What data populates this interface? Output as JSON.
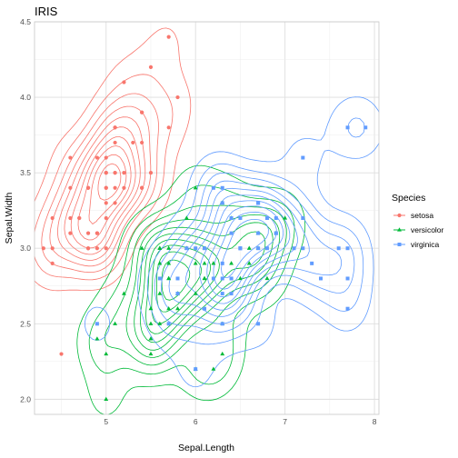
{
  "chart_data": {
    "type": "scatter",
    "title": "IRIS",
    "xlabel": "Sepal.Length",
    "ylabel": "Sepal.Width",
    "xlim": [
      4.2,
      8.05
    ],
    "ylim": [
      1.9,
      4.5
    ],
    "x_ticks": [
      5,
      6,
      7,
      8
    ],
    "y_ticks": [
      2.0,
      2.5,
      3.0,
      3.5,
      4.0,
      4.5
    ],
    "x_tick_labels": [
      "5",
      "6",
      "7",
      "8"
    ],
    "y_tick_labels": [
      "2.0",
      "2.5",
      "3.0",
      "3.5",
      "4.0",
      "4.5"
    ],
    "grid": true,
    "overlay": "2d density contours per series",
    "legend": {
      "title": "Species",
      "position": "right"
    },
    "series": [
      {
        "name": "setosa",
        "color": "#F8766D",
        "marker": "circle",
        "points": [
          [
            5.1,
            3.5
          ],
          [
            4.9,
            3.0
          ],
          [
            4.7,
            3.2
          ],
          [
            4.6,
            3.1
          ],
          [
            5.0,
            3.6
          ],
          [
            5.4,
            3.9
          ],
          [
            4.6,
            3.4
          ],
          [
            5.0,
            3.4
          ],
          [
            4.4,
            2.9
          ],
          [
            4.9,
            3.1
          ],
          [
            5.4,
            3.7
          ],
          [
            4.8,
            3.4
          ],
          [
            4.8,
            3.0
          ],
          [
            4.3,
            3.0
          ],
          [
            5.8,
            4.0
          ],
          [
            5.7,
            4.4
          ],
          [
            5.4,
            3.9
          ],
          [
            5.1,
            3.5
          ],
          [
            5.7,
            3.8
          ],
          [
            5.1,
            3.8
          ],
          [
            5.4,
            3.4
          ],
          [
            5.1,
            3.7
          ],
          [
            4.6,
            3.6
          ],
          [
            5.1,
            3.3
          ],
          [
            4.8,
            3.4
          ],
          [
            5.0,
            3.0
          ],
          [
            5.0,
            3.4
          ],
          [
            5.2,
            3.5
          ],
          [
            5.2,
            3.4
          ],
          [
            4.7,
            3.2
          ],
          [
            4.8,
            3.1
          ],
          [
            5.4,
            3.4
          ],
          [
            5.2,
            4.1
          ],
          [
            5.5,
            4.2
          ],
          [
            4.9,
            3.1
          ],
          [
            5.0,
            3.2
          ],
          [
            5.5,
            3.5
          ],
          [
            4.9,
            3.6
          ],
          [
            4.4,
            3.0
          ],
          [
            5.1,
            3.4
          ],
          [
            5.0,
            3.5
          ],
          [
            4.5,
            2.3
          ],
          [
            4.4,
            3.2
          ],
          [
            5.0,
            3.5
          ],
          [
            5.1,
            3.8
          ],
          [
            4.8,
            3.0
          ],
          [
            5.1,
            3.8
          ],
          [
            4.6,
            3.2
          ],
          [
            5.3,
            3.7
          ],
          [
            5.0,
            3.3
          ]
        ]
      },
      {
        "name": "versicolor",
        "color": "#00BA38",
        "marker": "triangle",
        "points": [
          [
            7.0,
            3.2
          ],
          [
            6.4,
            3.2
          ],
          [
            6.9,
            3.1
          ],
          [
            5.5,
            2.3
          ],
          [
            6.5,
            2.8
          ],
          [
            5.7,
            2.8
          ],
          [
            6.3,
            3.3
          ],
          [
            4.9,
            2.4
          ],
          [
            6.6,
            2.9
          ],
          [
            5.2,
            2.7
          ],
          [
            5.0,
            2.0
          ],
          [
            5.9,
            3.0
          ],
          [
            6.0,
            2.2
          ],
          [
            6.1,
            2.9
          ],
          [
            5.6,
            2.9
          ],
          [
            6.7,
            3.1
          ],
          [
            5.6,
            3.0
          ],
          [
            5.8,
            2.7
          ],
          [
            6.2,
            2.2
          ],
          [
            5.6,
            2.5
          ],
          [
            5.9,
            3.2
          ],
          [
            6.1,
            2.8
          ],
          [
            6.3,
            2.5
          ],
          [
            6.1,
            2.8
          ],
          [
            6.4,
            2.9
          ],
          [
            6.6,
            3.0
          ],
          [
            6.8,
            2.8
          ],
          [
            6.7,
            3.0
          ],
          [
            6.0,
            2.9
          ],
          [
            5.7,
            2.6
          ],
          [
            5.5,
            2.4
          ],
          [
            5.5,
            2.4
          ],
          [
            5.8,
            2.7
          ],
          [
            6.0,
            2.7
          ],
          [
            5.4,
            3.0
          ],
          [
            6.0,
            3.4
          ],
          [
            6.7,
            3.1
          ],
          [
            6.3,
            2.3
          ],
          [
            5.6,
            3.0
          ],
          [
            5.5,
            2.5
          ],
          [
            5.5,
            2.6
          ],
          [
            6.1,
            3.0
          ],
          [
            5.8,
            2.6
          ],
          [
            5.0,
            2.3
          ],
          [
            5.6,
            2.7
          ],
          [
            5.7,
            3.0
          ],
          [
            5.7,
            2.9
          ],
          [
            6.2,
            2.9
          ],
          [
            5.1,
            2.5
          ],
          [
            5.7,
            2.8
          ]
        ]
      },
      {
        "name": "virginica",
        "color": "#619CFF",
        "marker": "square",
        "points": [
          [
            6.3,
            3.3
          ],
          [
            5.8,
            2.7
          ],
          [
            7.1,
            3.0
          ],
          [
            6.3,
            2.9
          ],
          [
            6.5,
            3.0
          ],
          [
            7.6,
            3.0
          ],
          [
            4.9,
            2.5
          ],
          [
            7.3,
            2.9
          ],
          [
            6.7,
            2.5
          ],
          [
            7.2,
            3.6
          ],
          [
            6.5,
            3.2
          ],
          [
            6.4,
            2.7
          ],
          [
            6.8,
            3.0
          ],
          [
            5.7,
            2.5
          ],
          [
            5.8,
            2.8
          ],
          [
            6.4,
            3.2
          ],
          [
            6.5,
            3.0
          ],
          [
            7.7,
            3.8
          ],
          [
            7.7,
            2.6
          ],
          [
            6.0,
            2.2
          ],
          [
            6.9,
            3.2
          ],
          [
            5.6,
            2.8
          ],
          [
            7.7,
            2.8
          ],
          [
            6.3,
            2.7
          ],
          [
            6.7,
            3.3
          ],
          [
            7.2,
            3.2
          ],
          [
            6.2,
            2.8
          ],
          [
            6.1,
            3.0
          ],
          [
            6.4,
            2.8
          ],
          [
            7.2,
            3.0
          ],
          [
            7.4,
            2.8
          ],
          [
            7.9,
            3.8
          ],
          [
            6.4,
            2.8
          ],
          [
            6.3,
            2.8
          ],
          [
            6.1,
            2.6
          ],
          [
            7.7,
            3.0
          ],
          [
            6.3,
            3.4
          ],
          [
            6.4,
            3.1
          ],
          [
            6.0,
            3.0
          ],
          [
            6.9,
            3.1
          ],
          [
            6.7,
            3.1
          ],
          [
            6.9,
            3.1
          ],
          [
            5.8,
            2.7
          ],
          [
            6.8,
            3.2
          ],
          [
            6.7,
            3.3
          ],
          [
            6.7,
            3.0
          ],
          [
            6.3,
            2.5
          ],
          [
            6.5,
            3.0
          ],
          [
            6.2,
            3.4
          ],
          [
            5.9,
            3.0
          ]
        ]
      }
    ]
  }
}
